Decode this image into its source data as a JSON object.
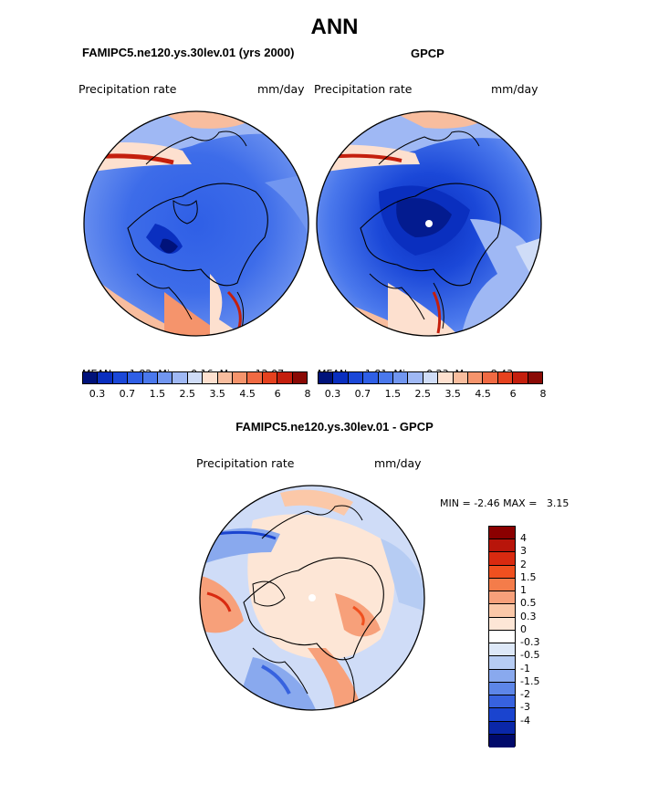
{
  "title": "ANN",
  "panels": {
    "model": {
      "header": "FAMIPC5.ne120.ys.30lev.01 (yrs 2000)",
      "field": "Precipitation rate",
      "units": "mm/day",
      "stats": {
        "mean_label": "MEAN=",
        "mean": "1.82",
        "min_label": "Min=",
        "min": "0.16",
        "max_label": "Max=",
        "max": "12.07"
      }
    },
    "obs": {
      "header": "GPCP",
      "field": "Precipitation rate",
      "units": "mm/day",
      "stats": {
        "mean_label": "MEAN=",
        "mean": "1.81",
        "min_label": "Min=",
        "min": "0.23",
        "max_label": "Max=",
        "max": "8.43"
      }
    },
    "diff": {
      "header": "FAMIPC5.ne120.ys.30lev.01 - GPCP",
      "field": "Precipitation rate",
      "units": "mm/day",
      "range_text": {
        "min_label": "MIN =",
        "min": "-2.46",
        "max_label": "MAX =",
        "max": "3.15"
      }
    }
  },
  "colorbar_precip": {
    "colors": [
      "#00127a",
      "#0a2fbf",
      "#1b48d8",
      "#2f5fe6",
      "#4a78ec",
      "#7196f0",
      "#9fb8f4",
      "#cfdcf7",
      "#fde0cf",
      "#f8bd9e",
      "#f5946c",
      "#f06a43",
      "#e5421f",
      "#c41f0d",
      "#8a0a05"
    ],
    "tick_labels": [
      "0.3",
      "0.7",
      "1.5",
      "2.5",
      "3.5",
      "4.5",
      "6",
      "8"
    ]
  },
  "colorbar_diff": {
    "colors": [
      "#8b0000",
      "#b8150a",
      "#d92a10",
      "#f0501f",
      "#f47c4a",
      "#f7a07a",
      "#fbc8a8",
      "#fde6d6",
      "#ffffff",
      "#dde8f8",
      "#b6ccf3",
      "#89a9ee",
      "#5d86e8",
      "#3762df",
      "#1a44cf",
      "#0a27a8",
      "#000a6b"
    ],
    "tick_labels": [
      "4",
      "3",
      "2",
      "1.5",
      "1",
      "0.5",
      "0.3",
      "0",
      "-0.3",
      "-0.5",
      "-1",
      "-1.5",
      "-2",
      "-3",
      "-4"
    ]
  }
}
